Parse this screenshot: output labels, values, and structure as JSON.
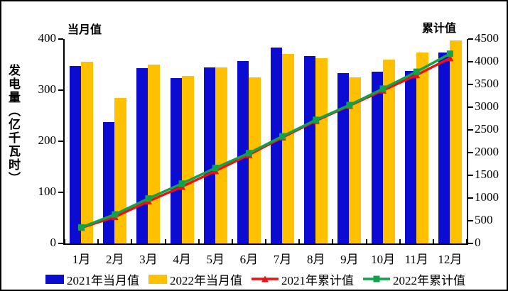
{
  "chart_data": {
    "type": "bar+line combo",
    "title": "",
    "ylabel": "发电量（亿千瓦时）",
    "left_axis": {
      "title": "当月值",
      "min": 0,
      "max": 400,
      "step": 100,
      "ticks": [
        0,
        100,
        200,
        300,
        400
      ]
    },
    "right_axis": {
      "title": "累计值",
      "min": 0,
      "max": 4500,
      "step": 500,
      "ticks": [
        0,
        500,
        1000,
        1500,
        2000,
        2500,
        3000,
        3500,
        4000,
        4500
      ]
    },
    "categories": [
      "1月",
      "2月",
      "3月",
      "4月",
      "5月",
      "6月",
      "7月",
      "8月",
      "9月",
      "10月",
      "11月",
      "12月"
    ],
    "series": [
      {
        "name": "2021年当月值",
        "type": "bar",
        "axis": "left",
        "color": "#0b0bd2",
        "marker": "none",
        "values": [
          347,
          237,
          343,
          323,
          345,
          357,
          383,
          366,
          333,
          336,
          337,
          374
        ]
      },
      {
        "name": "2022年当月值",
        "type": "bar",
        "axis": "left",
        "color": "#ffc000",
        "marker": "none",
        "values": [
          355,
          285,
          350,
          328,
          345,
          325,
          371,
          363,
          325,
          360,
          373,
          397
        ]
      },
      {
        "name": "2021年累计值",
        "type": "line",
        "axis": "right",
        "color": "#ee1111",
        "marker": "triangle",
        "values": [
          347,
          584,
          927,
          1250,
          1595,
          1952,
          2335,
          2701,
          3034,
          3370,
          3707,
          4081
        ]
      },
      {
        "name": "2022年累计值",
        "type": "line",
        "axis": "right",
        "color": "#10a34c",
        "marker": "square",
        "values": [
          355,
          640,
          990,
          1318,
          1663,
          1988,
          2359,
          2722,
          3047,
          3407,
          3780,
          4177
        ]
      }
    ],
    "legend_position": "bottom",
    "grid": false
  }
}
